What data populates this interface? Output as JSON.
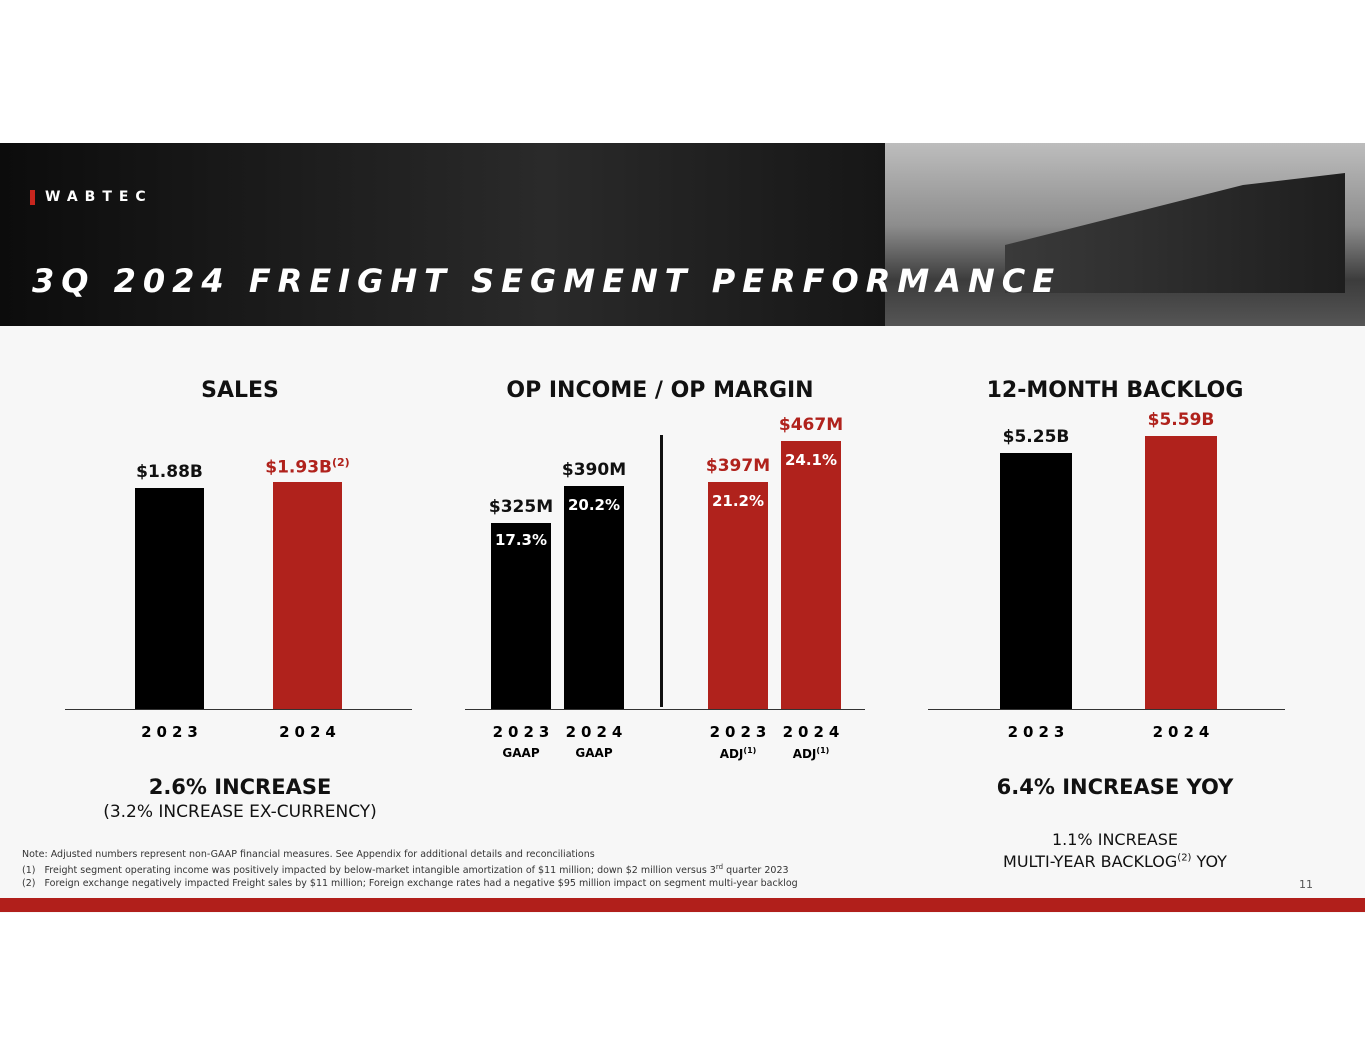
{
  "header": {
    "logo": "WABTEC",
    "title": "3Q 2024 FREIGHT SEGMENT PERFORMANCE"
  },
  "colors": {
    "black": "#000000",
    "red": "#b0221c"
  },
  "chart_data": [
    {
      "type": "bar",
      "title": "SALES",
      "categories": [
        "2023",
        "2024"
      ],
      "values": [
        1.88,
        1.93
      ],
      "unit": "B",
      "labels": [
        "$1.88B",
        "$1.93B"
      ],
      "label_sups": [
        "",
        "(2)"
      ],
      "colors": [
        "#000000",
        "#b0221c"
      ],
      "summary": "2.6% INCREASE",
      "summary_sub": "(3.2% INCREASE EX-CURRENCY)"
    },
    {
      "type": "bar",
      "title": "OP INCOME / OP MARGIN",
      "categories": [
        "2023",
        "2024",
        "2023",
        "2024"
      ],
      "sublabels": [
        "GAAP",
        "GAAP",
        "ADJ",
        "ADJ"
      ],
      "sublabel_sups": [
        "",
        "",
        "(1)",
        "(1)"
      ],
      "values": [
        325,
        390,
        397,
        467
      ],
      "unit": "M",
      "labels": [
        "$325M",
        "$390M",
        "$397M",
        "$467M"
      ],
      "margins": [
        "17.3%",
        "20.2%",
        "21.2%",
        "24.1%"
      ],
      "colors": [
        "#000000",
        "#000000",
        "#b0221c",
        "#b0221c"
      ]
    },
    {
      "type": "bar",
      "title": "12-MONTH BACKLOG",
      "categories": [
        "2023",
        "2024"
      ],
      "values": [
        5.25,
        5.59
      ],
      "unit": "B",
      "labels": [
        "$5.25B",
        "$5.59B"
      ],
      "colors": [
        "#000000",
        "#b0221c"
      ],
      "summary": "6.4% INCREASE YOY",
      "summary_sub1": "1.1% INCREASE",
      "summary_sub2": "MULTI-YEAR BACKLOG",
      "summary_sub2_sup": "(2)",
      "summary_sub2_end": " YOY"
    }
  ],
  "notes": {
    "note": "Note: Adjusted numbers represent non-GAAP financial measures. See Appendix for additional details and reconciliations",
    "n1_num": "(1)",
    "n1": "Freight segment operating income was positively impacted by below-market intangible amortization of $11 million; down $2 million versus 3",
    "n1_sup": "rd",
    "n1_end": " quarter 2023",
    "n2_num": "(2)",
    "n2": "Foreign exchange negatively impacted Freight sales by $11 million; Foreign exchange rates had a negative $95 million impact on segment multi-year backlog"
  },
  "page_number": "11"
}
